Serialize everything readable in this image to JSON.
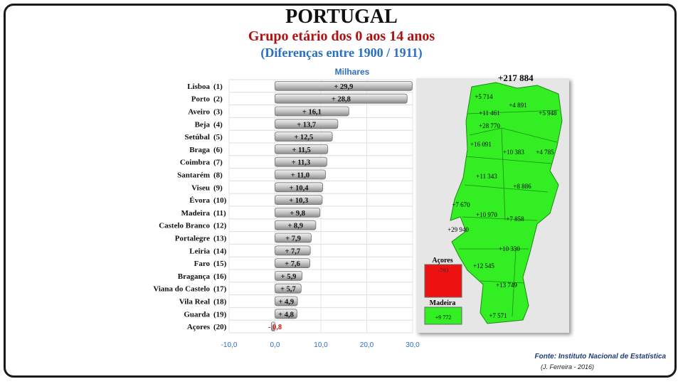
{
  "header": {
    "title": "PORTUGAL",
    "subtitle": "Grupo etário dos 0 aos 14 anos",
    "subsubtitle": "(Diferenças entre 1900 / 1911)"
  },
  "chart_data": {
    "type": "bar",
    "orientation": "horizontal",
    "unit_label": "Milhares",
    "categories": [
      "Lisboa",
      "Porto",
      "Aveiro",
      "Beja",
      "Setúbal",
      "Braga",
      "Coimbra",
      "Santarém",
      "Viseu",
      "Évora",
      "Madeira",
      "Castelo Branco",
      "Portalegre",
      "Leiria",
      "Faro",
      "Bragança",
      "Viana do Castelo",
      "Vila Real",
      "Guarda",
      "Açores"
    ],
    "ranks": [
      "(1)",
      "(2)",
      "(3)",
      "(4)",
      "(5)",
      "(6)",
      "(7)",
      "(8)",
      "(9)",
      "(10)",
      "(11)",
      "(12)",
      "(13)",
      "(14)",
      "(15)",
      "(16)",
      "(17)",
      "(18)",
      "(19)",
      "(20)"
    ],
    "values": [
      29.9,
      28.8,
      16.1,
      13.7,
      12.5,
      11.5,
      11.3,
      11.0,
      10.4,
      10.3,
      9.8,
      8.9,
      7.9,
      7.7,
      7.6,
      5.9,
      5.7,
      4.9,
      4.8,
      -0.8
    ],
    "value_labels": [
      "+ 29,9",
      "+ 28,8",
      "+ 16,1",
      "+ 13,7",
      "+ 12,5",
      "+ 11,5",
      "+ 11,3",
      "+ 11,0",
      "+ 10,4",
      "+ 10,3",
      "+ 9,8",
      "+ 8,9",
      "+ 7,9",
      "+ 7,7",
      "+ 7,6",
      "+ 5,9",
      "+ 5,7",
      "+ 4,9",
      "+ 4,8",
      "- 0,8"
    ],
    "xlim": [
      -10,
      30
    ],
    "xticks": [
      -10,
      0,
      10,
      20,
      30
    ],
    "xtick_labels": [
      "-10,0",
      "0,0",
      "10,0",
      "20,0",
      "30,0"
    ],
    "grid": true,
    "colors": {
      "bar": "#c4c4c4",
      "negative_label": "#d21414",
      "axis_labels": "#2a6fc0"
    }
  },
  "map": {
    "total": "+217 884",
    "district_labels": [
      "+5 714",
      "+4 891",
      "+11 461",
      "+5 948",
      "+28 770",
      "+16 091",
      "+10 383",
      "+4 785",
      "+11 343",
      "+8 886",
      "+7 670",
      "+10 970",
      "+7 858",
      "+29 940",
      "+10 330",
      "+12 545",
      "+13 749",
      "+7 571"
    ],
    "inset_azores": {
      "name": "Açores",
      "value": "-793",
      "color": "#ee1111"
    },
    "inset_madeira": {
      "name": "Madeira",
      "value": "+9 772",
      "color": "#33ee22"
    },
    "land_color": "#33ee22"
  },
  "footer": {
    "source": "Fonte: Instituto Nacional de Estatística",
    "author": "(J. Ferreira - 2016)"
  }
}
